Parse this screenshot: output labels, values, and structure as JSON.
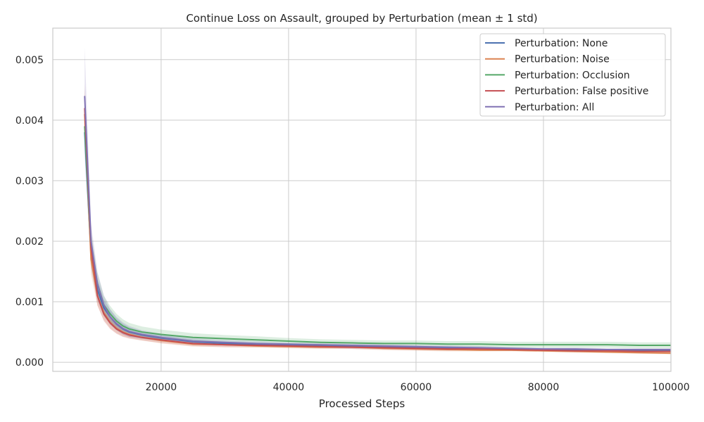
{
  "chart_data": {
    "type": "line",
    "title": "Continue Loss on Assault, grouped by Perturbation (mean ± 1 std)",
    "xlabel": "Processed Steps",
    "ylabel": "",
    "xlim": [
      3000,
      100000
    ],
    "ylim": [
      -0.00015,
      0.00552
    ],
    "x_ticks": [
      20000,
      40000,
      60000,
      80000,
      100000
    ],
    "x_tick_labels": [
      "20000",
      "40000",
      "60000",
      "80000",
      "100000"
    ],
    "y_ticks": [
      0.0,
      0.001,
      0.002,
      0.003,
      0.004,
      0.005
    ],
    "y_tick_labels": [
      "0.000",
      "0.001",
      "0.002",
      "0.003",
      "0.004",
      "0.005"
    ],
    "grid": true,
    "legend_position": "top-right",
    "x": [
      8000,
      9000,
      10000,
      11000,
      12000,
      13000,
      14000,
      15000,
      17000,
      20000,
      25000,
      30000,
      35000,
      40000,
      45000,
      50000,
      55000,
      60000,
      65000,
      70000,
      75000,
      80000,
      85000,
      90000,
      95000,
      100000
    ],
    "series": [
      {
        "name": "Perturbation: None",
        "color": "#4c72b0",
        "values": [
          0.0038,
          0.0018,
          0.0012,
          0.0009,
          0.00075,
          0.00063,
          0.00055,
          0.0005,
          0.00045,
          0.0004,
          0.00034,
          0.00031,
          0.00029,
          0.00028,
          0.00027,
          0.00026,
          0.00025,
          0.00024,
          0.00023,
          0.00022,
          0.00021,
          0.0002,
          0.0002,
          0.00019,
          0.00019,
          0.00019
        ],
        "std": [
          0.0004,
          0.00025,
          0.00018,
          0.00014,
          0.00012,
          0.0001,
          9e-05,
          8e-05,
          6e-05,
          5e-05,
          4e-05,
          3e-05,
          3e-05,
          3e-05,
          3e-05,
          3e-05,
          3e-05,
          2e-05,
          2e-05,
          2e-05,
          2e-05,
          2e-05,
          2e-05,
          2e-05,
          2e-05,
          2e-05
        ]
      },
      {
        "name": "Perturbation: Noise",
        "color": "#dd8452",
        "values": [
          0.0041,
          0.0017,
          0.0011,
          0.00082,
          0.00066,
          0.00056,
          0.0005,
          0.00046,
          0.00041,
          0.00036,
          0.0003,
          0.00029,
          0.00027,
          0.00026,
          0.00025,
          0.00025,
          0.00023,
          0.00022,
          0.00021,
          0.0002,
          0.0002,
          0.00019,
          0.00018,
          0.00017,
          0.00016,
          0.00015
        ],
        "std": [
          0.0004,
          0.00025,
          0.00016,
          0.00012,
          0.0001,
          8e-05,
          7e-05,
          6e-05,
          5e-05,
          5e-05,
          4e-05,
          4e-05,
          3e-05,
          3e-05,
          3e-05,
          3e-05,
          3e-05,
          3e-05,
          3e-05,
          2e-05,
          2e-05,
          2e-05,
          2e-05,
          2e-05,
          2e-05,
          2e-05
        ]
      },
      {
        "name": "Perturbation: Occlusion",
        "color": "#55a868",
        "values": [
          0.0039,
          0.0019,
          0.0013,
          0.00095,
          0.0008,
          0.00068,
          0.0006,
          0.00055,
          0.0005,
          0.00046,
          0.00041,
          0.00039,
          0.00037,
          0.00035,
          0.00033,
          0.00032,
          0.00031,
          0.00031,
          0.0003,
          0.0003,
          0.00029,
          0.00029,
          0.00029,
          0.00029,
          0.00028,
          0.00028
        ],
        "std": [
          0.0004,
          0.00026,
          0.00018,
          0.00015,
          0.00013,
          0.00012,
          0.00011,
          0.0001,
          9e-05,
          8e-05,
          7e-05,
          6e-05,
          6e-05,
          5e-05,
          5e-05,
          5e-05,
          5e-05,
          5e-05,
          5e-05,
          5e-05,
          5e-05,
          5e-05,
          5e-05,
          5e-05,
          5e-05,
          5e-05
        ]
      },
      {
        "name": "Perturbation: False positive",
        "color": "#c44e52",
        "values": [
          0.0042,
          0.0019,
          0.0011,
          0.0008,
          0.00065,
          0.00055,
          0.00049,
          0.00045,
          0.00041,
          0.00037,
          0.00031,
          0.00029,
          0.00028,
          0.00027,
          0.00026,
          0.00025,
          0.00024,
          0.00023,
          0.00022,
          0.00022,
          0.00021,
          0.0002,
          0.00019,
          0.00019,
          0.00018,
          0.00018
        ],
        "std": [
          0.0004,
          0.00025,
          0.00016,
          0.00012,
          0.0001,
          8e-05,
          7e-05,
          6e-05,
          5e-05,
          5e-05,
          4e-05,
          4e-05,
          3e-05,
          3e-05,
          3e-05,
          3e-05,
          3e-05,
          3e-05,
          3e-05,
          2e-05,
          2e-05,
          2e-05,
          2e-05,
          2e-05,
          2e-05,
          2e-05
        ]
      },
      {
        "name": "Perturbation: All",
        "color": "#8172b3",
        "values": [
          0.0044,
          0.002,
          0.0013,
          0.00095,
          0.00075,
          0.00064,
          0.00056,
          0.00051,
          0.00046,
          0.00041,
          0.00035,
          0.00033,
          0.00031,
          0.0003,
          0.00029,
          0.00028,
          0.00027,
          0.00026,
          0.00025,
          0.00024,
          0.00023,
          0.00022,
          0.00022,
          0.00021,
          0.00021,
          0.00021
        ],
        "std": [
          0.0008,
          0.0003,
          0.0002,
          0.00016,
          0.00013,
          0.00011,
          0.0001,
          9e-05,
          7e-05,
          6e-05,
          5e-05,
          4e-05,
          4e-05,
          3e-05,
          3e-05,
          3e-05,
          3e-05,
          3e-05,
          3e-05,
          3e-05,
          2e-05,
          2e-05,
          2e-05,
          2e-05,
          2e-05,
          2e-05
        ]
      }
    ]
  }
}
